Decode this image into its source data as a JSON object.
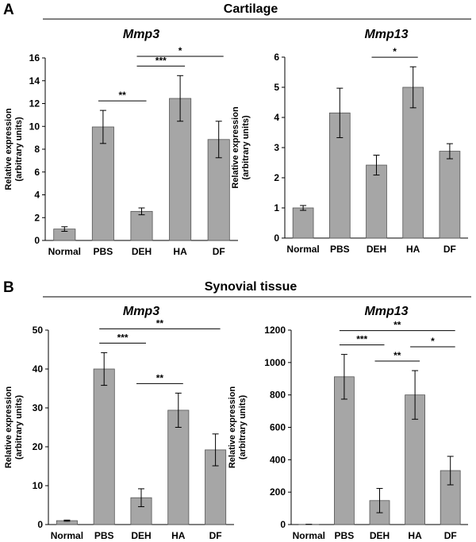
{
  "panels": [
    {
      "letter": "A",
      "title": "Cartilage"
    },
    {
      "letter": "B",
      "title": "Synovial tissue"
    }
  ],
  "colors": {
    "bar_fill": "#a6a6a6",
    "bar_stroke": "#555555",
    "axis": "#000000"
  },
  "chart_data": [
    {
      "type": "bar",
      "panel": "A",
      "title": "Mmp3",
      "ylabel": "Relative expression (arbitrary units)",
      "categories": [
        "Normal",
        "PBS",
        "DEH",
        "HA",
        "DF"
      ],
      "values": [
        1.0,
        9.95,
        2.55,
        12.45,
        8.85
      ],
      "errors": [
        0.2,
        1.45,
        0.3,
        2.0,
        1.6
      ],
      "ylim": [
        0,
        16
      ],
      "yticks": [
        0,
        2,
        4,
        6,
        8,
        10,
        12,
        14,
        16
      ],
      "significance": [
        {
          "from": "PBS",
          "to": "DEH",
          "label": "**"
        },
        {
          "from": "DEH",
          "to": "HA",
          "label": "***"
        },
        {
          "from": "DEH",
          "to": "DF",
          "label": "*"
        }
      ]
    },
    {
      "type": "bar",
      "panel": "A",
      "title": "Mmp13",
      "ylabel": "Relative expression (arbitrary units)",
      "categories": [
        "Normal",
        "PBS",
        "DEH",
        "HA",
        "DF"
      ],
      "values": [
        1.0,
        4.15,
        2.42,
        5.0,
        2.88
      ],
      "errors": [
        0.08,
        0.82,
        0.33,
        0.68,
        0.25
      ],
      "ylim": [
        0,
        6
      ],
      "yticks": [
        0,
        1,
        2,
        3,
        4,
        5,
        6
      ],
      "significance": [
        {
          "from": "DEH",
          "to": "HA",
          "label": "*"
        }
      ]
    },
    {
      "type": "bar",
      "panel": "B",
      "title": "Mmp3",
      "ylabel": "Relative expression (arbitrary units)",
      "categories": [
        "Normal",
        "PBS",
        "DEH",
        "HA",
        "DF"
      ],
      "values": [
        1.0,
        40.0,
        6.9,
        29.4,
        19.2
      ],
      "errors": [
        0.15,
        4.2,
        2.3,
        4.4,
        4.1
      ],
      "ylim": [
        0,
        50
      ],
      "yticks": [
        0,
        10,
        20,
        30,
        40,
        50
      ],
      "significance": [
        {
          "from": "PBS",
          "to": "DEH",
          "label": "***"
        },
        {
          "from": "PBS",
          "to": "DF",
          "label": "**"
        },
        {
          "from": "DEH",
          "to": "HA",
          "label": "**"
        }
      ]
    },
    {
      "type": "bar",
      "panel": "B",
      "title": "Mmp13",
      "ylabel": "Relative expression (arbitrary units)",
      "categories": [
        "Normal",
        "PBS",
        "DEH",
        "HA",
        "DF"
      ],
      "values": [
        1.0,
        912,
        148,
        800,
        333
      ],
      "errors": [
        0.5,
        138,
        75,
        150,
        88
      ],
      "ylim": [
        0,
        1200
      ],
      "yticks": [
        0,
        200,
        400,
        600,
        800,
        1000,
        1200
      ],
      "significance": [
        {
          "from": "PBS",
          "to": "DEH",
          "label": "***"
        },
        {
          "from": "PBS",
          "to": "DF",
          "label": "**"
        },
        {
          "from": "DEH",
          "to": "HA",
          "label": "**"
        },
        {
          "from": "HA",
          "to": "DF",
          "label": "*"
        }
      ]
    }
  ]
}
